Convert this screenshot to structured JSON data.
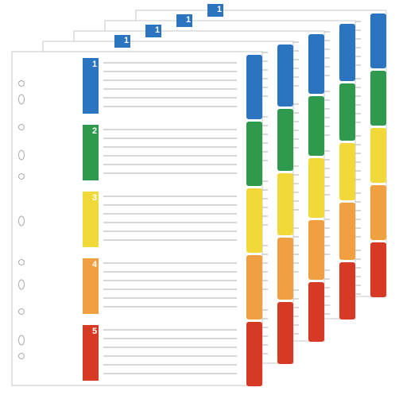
{
  "front_tabs": [
    {
      "label": "1"
    },
    {
      "label": "2"
    },
    {
      "label": "3"
    },
    {
      "label": "4"
    },
    {
      "label": "5"
    }
  ],
  "back_tabs": [
    {
      "label": "1"
    },
    {
      "label": "1"
    },
    {
      "label": "1"
    },
    {
      "label": "1"
    }
  ]
}
